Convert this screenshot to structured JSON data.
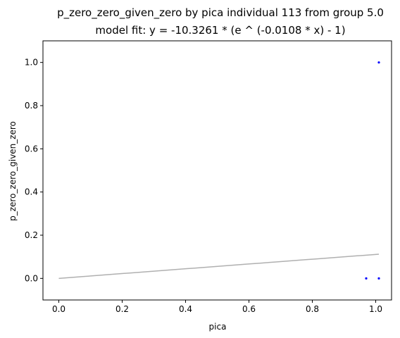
{
  "chart_data": {
    "type": "scatter",
    "title": "p_zero_zero_given_zero by pica individual 113 from group 5.0",
    "subtitle": "model fit: y = -10.3261 * (e ^ (-0.0108 * x) - 1)",
    "xlabel": "pica",
    "ylabel": "p_zero_zero_given_zero",
    "xlim": [
      -0.05,
      1.05
    ],
    "ylim": [
      -0.1,
      1.1
    ],
    "xticks": [
      0.0,
      0.2,
      0.4,
      0.6,
      0.8,
      1.0
    ],
    "yticks": [
      0.0,
      0.2,
      0.4,
      0.6,
      0.8,
      1.0
    ],
    "xtick_labels": [
      "0.0",
      "0.2",
      "0.4",
      "0.6",
      "0.8",
      "1.0"
    ],
    "ytick_labels": [
      "0.0",
      "0.2",
      "0.4",
      "0.6",
      "0.8",
      "1.0"
    ],
    "grid": false,
    "series": [
      {
        "kind": "scatter",
        "color": "#0000ff",
        "points": [
          {
            "x": 0.97,
            "y": 0.0
          },
          {
            "x": 1.01,
            "y": 0.0
          },
          {
            "x": 1.01,
            "y": 1.0
          }
        ]
      },
      {
        "kind": "line",
        "color": "#b0b0b0",
        "fit": {
          "a": -10.3261,
          "b": -0.0108
        },
        "x_range": [
          0.0,
          1.01
        ]
      }
    ]
  }
}
